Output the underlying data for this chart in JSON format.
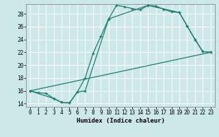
{
  "xlabel": "Humidex (Indice chaleur)",
  "bg_color": "#cce8e8",
  "grid_color": "#ffffff",
  "line_color": "#1a7a6e",
  "xlim": [
    -0.5,
    23.5
  ],
  "ylim": [
    13.5,
    29.5
  ],
  "xticks": [
    0,
    1,
    2,
    3,
    4,
    5,
    6,
    7,
    8,
    9,
    10,
    11,
    12,
    13,
    14,
    15,
    16,
    17,
    18,
    19,
    20,
    21,
    22,
    23
  ],
  "yticks": [
    14,
    16,
    18,
    20,
    22,
    24,
    26,
    28
  ],
  "curve1_x": [
    0,
    1,
    2,
    3,
    4,
    5,
    6,
    7,
    8,
    9,
    10,
    11,
    12,
    13,
    14,
    15,
    16,
    17,
    18,
    19,
    20,
    21,
    22,
    23
  ],
  "curve1_y": [
    16.0,
    15.7,
    15.6,
    14.8,
    14.2,
    14.1,
    15.8,
    18.0,
    21.8,
    24.5,
    27.2,
    29.3,
    29.1,
    28.8,
    28.6,
    29.3,
    29.2,
    28.7,
    28.3,
    28.2,
    26.1,
    24.0,
    22.1,
    22.0
  ],
  "curve2_x": [
    0,
    3,
    4,
    5,
    6,
    7,
    10,
    15,
    19,
    20,
    21,
    22,
    23
  ],
  "curve2_y": [
    16.0,
    14.8,
    14.2,
    14.1,
    15.8,
    16.0,
    27.2,
    29.3,
    28.2,
    26.1,
    24.0,
    22.1,
    22.0
  ],
  "curve3_x": [
    0,
    23
  ],
  "curve3_y": [
    16.0,
    22.0
  ]
}
